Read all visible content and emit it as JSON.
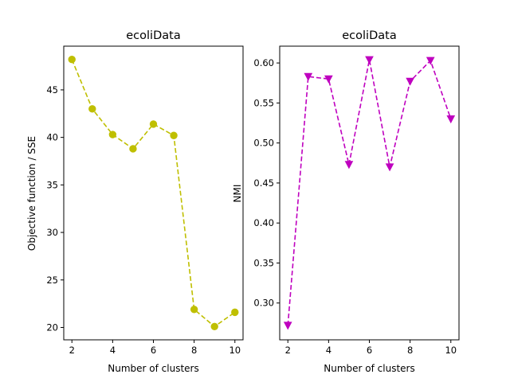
{
  "chart_data": [
    {
      "type": "line",
      "title": "ecoliData",
      "xlabel": "Number of clusters",
      "ylabel": "Objective function / SSE",
      "x": [
        2,
        3,
        4,
        5,
        6,
        7,
        8,
        9,
        10
      ],
      "xlim": [
        1.6,
        10.4
      ],
      "ylim": [
        18.7,
        49.6
      ],
      "xticks": [
        2,
        4,
        6,
        8,
        10
      ],
      "yticks": [
        20,
        25,
        30,
        35,
        40,
        45
      ],
      "ytick_labels": [
        "20",
        "25",
        "30",
        "35",
        "40",
        "45"
      ],
      "grid": false,
      "series": [
        {
          "values": [
            48.2,
            43.0,
            40.3,
            38.8,
            41.4,
            40.2,
            21.9,
            20.1,
            21.6
          ],
          "color": "#bfbf00",
          "marker": "circle",
          "linestyle": "dashed"
        }
      ]
    },
    {
      "type": "line",
      "title": "ecoliData",
      "xlabel": "Number of clusters",
      "ylabel": "NMI",
      "x": [
        2,
        3,
        4,
        5,
        6,
        7,
        8,
        9,
        10
      ],
      "xlim": [
        1.6,
        10.4
      ],
      "ylim": [
        0.254,
        0.621
      ],
      "xticks": [
        2,
        4,
        6,
        8,
        10
      ],
      "yticks": [
        0.3,
        0.35,
        0.4,
        0.45,
        0.5,
        0.55,
        0.6
      ],
      "ytick_labels": [
        "0.30",
        "0.35",
        "0.40",
        "0.45",
        "0.50",
        "0.55",
        "0.60"
      ],
      "grid": false,
      "series": [
        {
          "values": [
            0.272,
            0.583,
            0.58,
            0.473,
            0.604,
            0.47,
            0.577,
            0.603,
            0.53
          ],
          "color": "#bf00bf",
          "marker": "triangle-down",
          "linestyle": "dashed"
        }
      ]
    }
  ]
}
